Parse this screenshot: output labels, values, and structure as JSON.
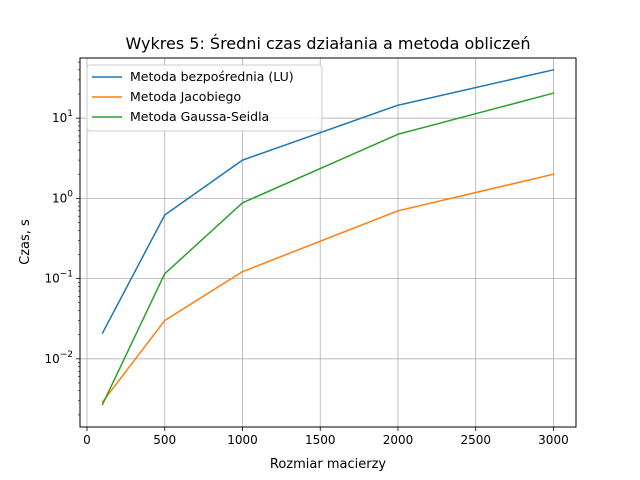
{
  "chart_data": {
    "type": "line",
    "title": "Wykres 5: Średni czas działania a metoda obliczeń",
    "xlabel": "Rozmiar macierzy",
    "ylabel": "Czas, s",
    "xlim": [
      -45,
      3145
    ],
    "ylim_log10": [
      -2.85,
      1.75
    ],
    "yscale": "log",
    "grid": true,
    "legend_position": "top-left",
    "x_ticks": [
      0,
      500,
      1000,
      1500,
      2000,
      2500,
      3000
    ],
    "x_tick_labels": [
      "0",
      "500",
      "1000",
      "1500",
      "2000",
      "2500",
      "3000"
    ],
    "y_ticks": [
      0.01,
      0.1,
      1,
      10
    ],
    "y_tick_labels": [
      {
        "base": "10",
        "exp": "−2"
      },
      {
        "base": "10",
        "exp": "−1"
      },
      {
        "base": "10",
        "exp": "0"
      },
      {
        "base": "10",
        "exp": "1"
      }
    ],
    "x": [
      100,
      500,
      1000,
      2000,
      3000
    ],
    "series": [
      {
        "name": "Metoda bezpośrednia (LU)",
        "color": "#1f77b4",
        "values": [
          0.021,
          0.62,
          3.0,
          14.5,
          40
        ]
      },
      {
        "name": "Metoda Jacobiego",
        "color": "#ff7f0e",
        "values": [
          0.0029,
          0.03,
          0.122,
          0.7,
          2.0
        ]
      },
      {
        "name": "Metoda Gaussa-Seidla",
        "color": "#2ca02c",
        "values": [
          0.0027,
          0.115,
          0.88,
          6.3,
          20.5
        ]
      }
    ]
  }
}
